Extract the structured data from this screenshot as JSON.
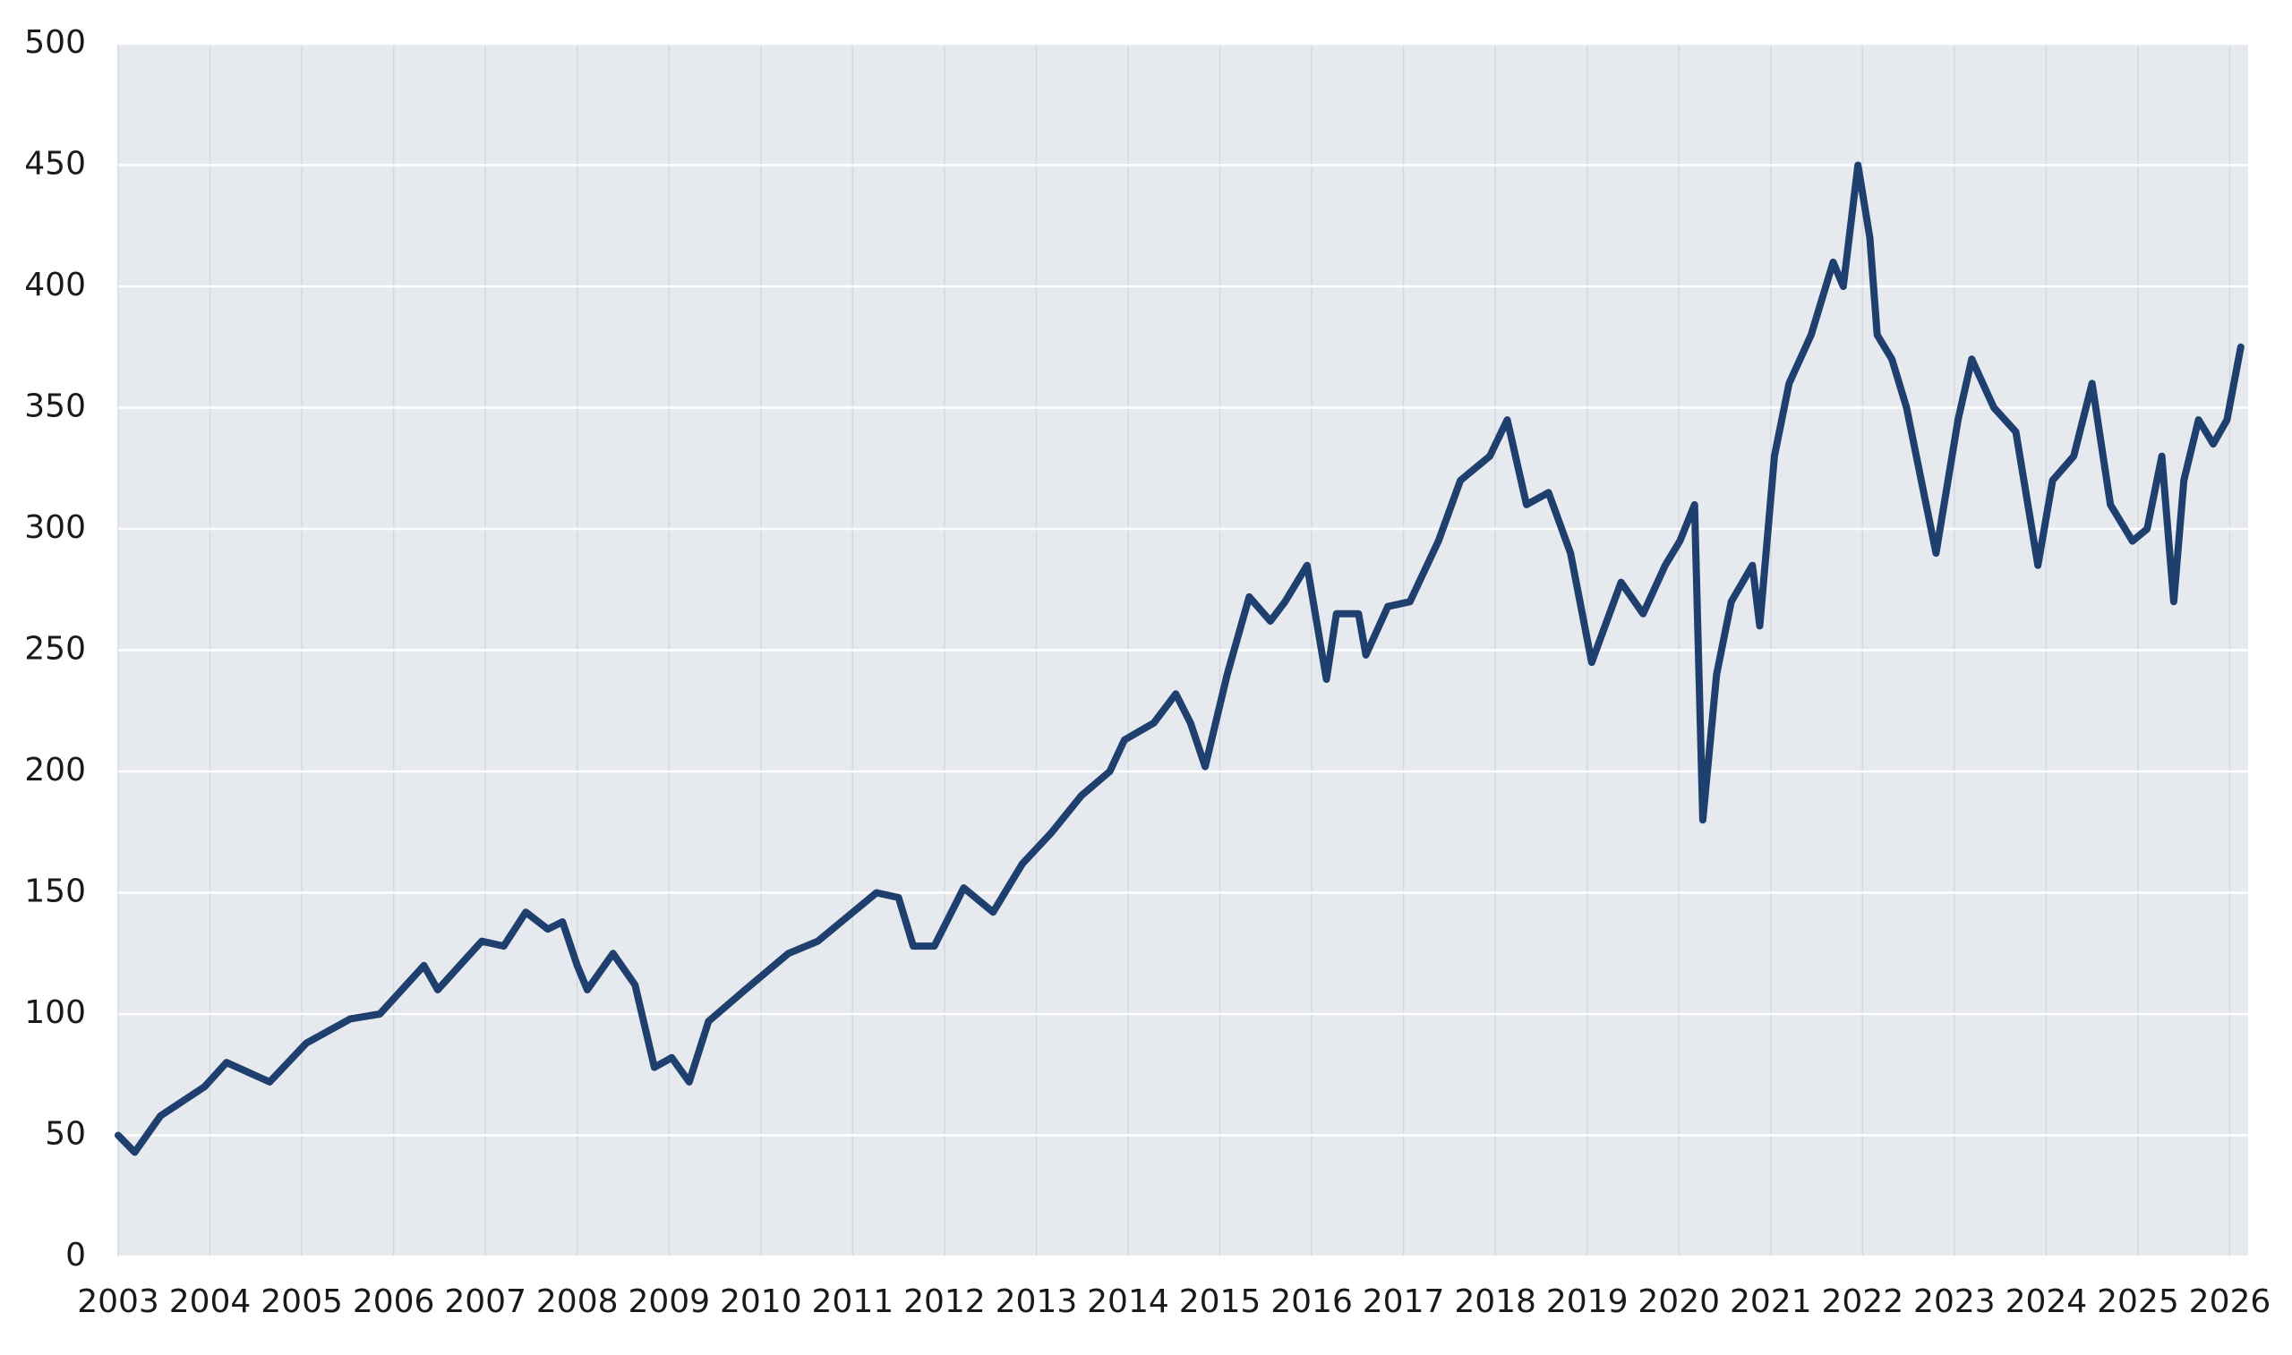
{
  "chart_data": {
    "type": "line",
    "color": "#1f3f6e",
    "grid": true,
    "xlim": [
      2003,
      2026.2
    ],
    "ylim": [
      0,
      500
    ],
    "xticks": [
      2003,
      2004,
      2005,
      2006,
      2007,
      2008,
      2009,
      2010,
      2011,
      2012,
      2013,
      2014,
      2015,
      2016,
      2017,
      2018,
      2019,
      2020,
      2021,
      2022,
      2023,
      2024,
      2025,
      2026
    ],
    "yticks": [
      0,
      50,
      100,
      150,
      200,
      250,
      300,
      350,
      400,
      450,
      500
    ],
    "x": [
      2003.0,
      2003.18,
      2003.46,
      2003.94,
      2004.18,
      2004.65,
      2005.05,
      2005.53,
      2005.85,
      2006.33,
      2006.48,
      2006.96,
      2007.2,
      2007.44,
      2007.68,
      2007.84,
      2008.0,
      2008.11,
      2008.39,
      2008.63,
      2008.84,
      2009.03,
      2009.22,
      2009.43,
      2009.83,
      2010.3,
      2010.62,
      2010.94,
      2011.26,
      2011.5,
      2011.66,
      2011.89,
      2012.21,
      2012.53,
      2012.85,
      2013.17,
      2013.49,
      2013.8,
      2013.96,
      2014.28,
      2014.52,
      2014.68,
      2014.84,
      2015.08,
      2015.32,
      2015.55,
      2015.71,
      2015.95,
      2016.16,
      2016.27,
      2016.51,
      2016.59,
      2016.83,
      2017.07,
      2017.38,
      2017.62,
      2017.94,
      2018.13,
      2018.34,
      2018.58,
      2018.82,
      2019.05,
      2019.37,
      2019.61,
      2019.85,
      2020.01,
      2020.17,
      2020.26,
      2020.41,
      2020.57,
      2020.8,
      2020.88,
      2021.04,
      2021.2,
      2021.44,
      2021.68,
      2021.79,
      2021.95,
      2022.08,
      2022.16,
      2022.32,
      2022.48,
      2022.64,
      2022.8,
      2023.04,
      2023.19,
      2023.43,
      2023.67,
      2023.91,
      2024.07,
      2024.3,
      2024.5,
      2024.7,
      2024.94,
      2025.1,
      2025.26,
      2025.39,
      2025.5,
      2025.66,
      2025.82,
      2025.97,
      2026.12
    ],
    "values": [
      50,
      43,
      58,
      70,
      80,
      72,
      88,
      98,
      100,
      120,
      110,
      130,
      128,
      142,
      135,
      138,
      120,
      110,
      125,
      112,
      78,
      82,
      72,
      97,
      110,
      125,
      130,
      140,
      150,
      148,
      128,
      128,
      152,
      142,
      162,
      175,
      190,
      200,
      213,
      220,
      232,
      220,
      202,
      240,
      272,
      262,
      270,
      285,
      238,
      265,
      265,
      248,
      268,
      270,
      295,
      320,
      330,
      345,
      310,
      315,
      290,
      245,
      278,
      265,
      285,
      295,
      310,
      180,
      240,
      270,
      285,
      260,
      330,
      360,
      380,
      410,
      400,
      450,
      420,
      380,
      370,
      350,
      320,
      290,
      345,
      370,
      350,
      340,
      285,
      320,
      330,
      360,
      310,
      295,
      300,
      330,
      270,
      320,
      345,
      335,
      345,
      375
    ]
  }
}
